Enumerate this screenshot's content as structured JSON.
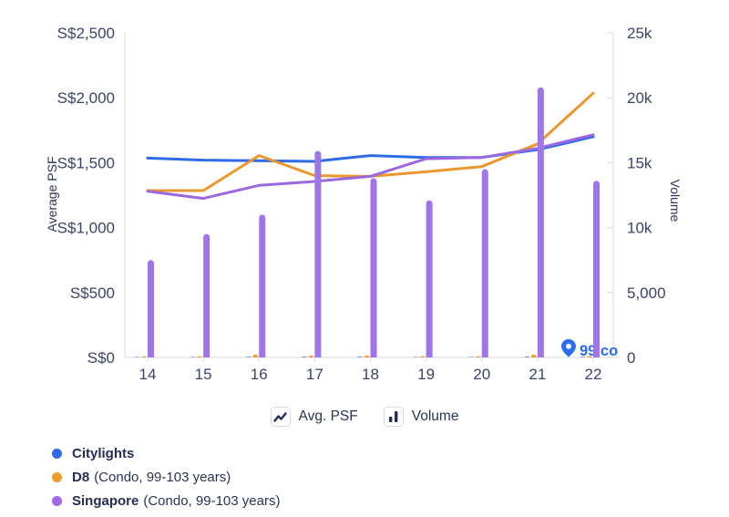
{
  "chart_data": {
    "type": "combo line+bar, dual axis",
    "x": [
      "14",
      "15",
      "16",
      "17",
      "18",
      "19",
      "20",
      "21",
      "22"
    ],
    "left_axis": {
      "label": "Average PSF",
      "min": 0,
      "max": 2500,
      "ticks": [
        {
          "v": 2500,
          "label": "S$2,500"
        },
        {
          "v": 2000,
          "label": "S$2,000"
        },
        {
          "v": 1500,
          "label": "S$1,500"
        },
        {
          "v": 1000,
          "label": "S$1,000"
        },
        {
          "v": 500,
          "label": "S$500"
        },
        {
          "v": 0,
          "label": "S$0"
        }
      ]
    },
    "right_axis": {
      "label": "Volume",
      "min": 0,
      "max": 25000,
      "ticks": [
        {
          "v": 25000,
          "label": "25k"
        },
        {
          "v": 20000,
          "label": "20k"
        },
        {
          "v": 15000,
          "label": "15k"
        },
        {
          "v": 10000,
          "label": "10k"
        },
        {
          "v": 5000,
          "label": "5,000"
        },
        {
          "v": 0,
          "label": "0"
        }
      ]
    },
    "psf_series": [
      {
        "name": "Citylights",
        "color": "#2e6be4",
        "values": [
          1535,
          1520,
          1515,
          1510,
          1555,
          1540,
          1540,
          1600,
          1700
        ]
      },
      {
        "name": "D8",
        "color": "#e9972f",
        "values": [
          1285,
          1285,
          1555,
          1400,
          1395,
          1430,
          1470,
          1645,
          2035
        ]
      },
      {
        "name": "Singapore",
        "color": "#9b68e0",
        "values": [
          1280,
          1225,
          1325,
          1355,
          1395,
          1530,
          1540,
          1610,
          1715
        ]
      }
    ],
    "volume_series": [
      {
        "name": "Citylights",
        "color": "#5b8df0",
        "values": [
          40,
          40,
          60,
          70,
          60,
          40,
          40,
          80,
          50
        ]
      },
      {
        "name": "D8",
        "color": "#eda035",
        "values": [
          90,
          90,
          230,
          150,
          160,
          100,
          90,
          230,
          110
        ]
      },
      {
        "name": "Singapore",
        "color": "#a075e8",
        "values": [
          7500,
          9500,
          11000,
          15900,
          13800,
          12100,
          14500,
          20800,
          13600
        ]
      }
    ],
    "legend_position": "bottom",
    "grid": "off"
  },
  "legend": {
    "toggles": [
      {
        "label": "Avg. PSF",
        "icon": "line-zigzag-icon"
      },
      {
        "label": "Volume",
        "icon": "bars-icon"
      }
    ],
    "series": [
      {
        "name": "Citylights",
        "suffix": "",
        "color": "#2f6ae8"
      },
      {
        "name": "D8",
        "suffix": "(Condo, 99-103 years)",
        "color": "#ef9b28"
      },
      {
        "name": "Singapore",
        "suffix": "(Condo, 99-103 years)",
        "color": "#a169e8"
      }
    ]
  },
  "watermark": {
    "brand": "99.co",
    "color": "#2c6cf2"
  },
  "colors": {
    "axis_line": "#e3e4ea",
    "tick_label": "#3b4468",
    "axis_title": "#2b3455",
    "legend_text": "#2b3455"
  }
}
